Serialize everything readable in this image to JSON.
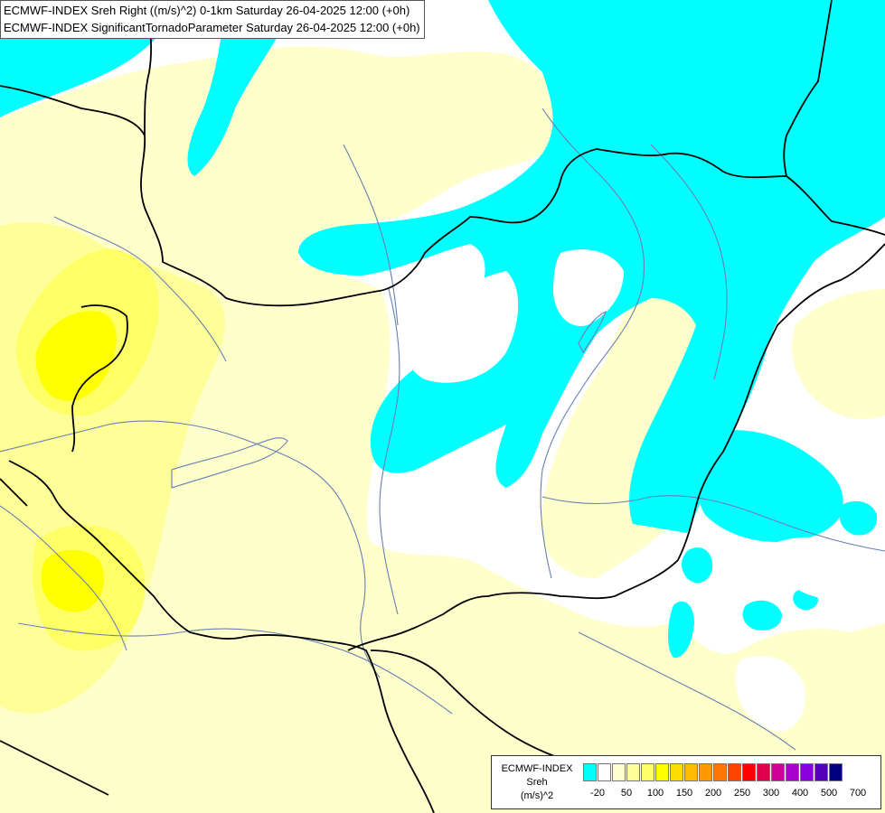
{
  "title_lines": [
    "ECMWF-INDEX Sreh Right ((m/s)^2) 0-1km Saturday 26-04-2025 12:00 (+0h)",
    "ECMWF-INDEX SignificantTornadoParameter Saturday 26-04-2025 12:00 (+0h)"
  ],
  "legend": {
    "label_lines": [
      "ECMWF-INDEX",
      "Sreh",
      "(m/s)^2"
    ],
    "colors": [
      "#00ffff",
      "#ffffff",
      "#ffffd0",
      "#ffff99",
      "#ffff66",
      "#ffff00",
      "#ffdd00",
      "#ffbb00",
      "#ff9900",
      "#ff7700",
      "#ff4400",
      "#ff0000",
      "#e00050",
      "#cc0099",
      "#aa00cc",
      "#8800dd",
      "#5500bb",
      "#000080"
    ],
    "tick_labels": [
      "-20",
      "50",
      "100",
      "150",
      "200",
      "250",
      "300",
      "400",
      "500",
      "700"
    ]
  },
  "colors": {
    "cyan": "#00ffff",
    "pale_yellow": "#ffffcc",
    "light_yellow": "#ffff99",
    "medium_yellow": "#ffff66",
    "bright_yellow": "#ffff00",
    "background": "#ffffff",
    "border": "#000000",
    "river": "#6680b3"
  }
}
